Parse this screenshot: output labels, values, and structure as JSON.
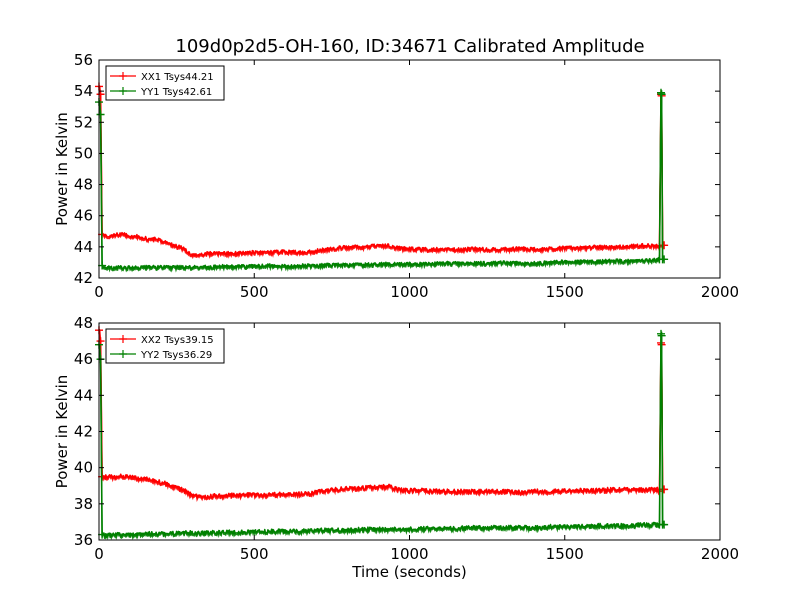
{
  "title": "109d0p2d5-OH-160, ID:34671 Calibrated Amplitude",
  "chart_data": [
    {
      "type": "line",
      "ylabel": "Power in Kelvin",
      "xlabel": "",
      "xlim": [
        0,
        2000
      ],
      "ylim": [
        42,
        56
      ],
      "xticks": [
        0,
        500,
        1000,
        1500,
        2000
      ],
      "yticks": [
        42,
        44,
        46,
        48,
        50,
        52,
        54,
        56
      ],
      "grid": false,
      "legend_position": "top-left",
      "series": [
        {
          "name": "XX1 Tsys44.21",
          "color": "#ff0000",
          "marker": "+",
          "x": [
            0,
            2,
            5,
            10,
            20,
            40,
            60,
            80,
            100,
            120,
            140,
            160,
            180,
            200,
            220,
            240,
            260,
            280,
            300,
            320,
            340,
            360,
            400,
            450,
            500,
            550,
            600,
            650,
            680,
            700,
            750,
            800,
            850,
            900,
            930,
            960,
            1000,
            1050,
            1100,
            1150,
            1200,
            1250,
            1300,
            1350,
            1400,
            1450,
            1500,
            1550,
            1600,
            1650,
            1700,
            1750,
            1790,
            1800,
            1805,
            1810,
            1812,
            1815,
            1820
          ],
          "y": [
            54.3,
            54.4,
            53.8,
            44.8,
            44.7,
            44.7,
            44.8,
            44.8,
            44.7,
            44.7,
            44.6,
            44.5,
            44.5,
            44.4,
            44.3,
            44.1,
            44.0,
            43.8,
            43.5,
            43.5,
            43.55,
            43.6,
            43.6,
            43.6,
            43.65,
            43.65,
            43.7,
            43.65,
            43.7,
            43.75,
            43.9,
            44.0,
            44.0,
            44.1,
            44.1,
            43.95,
            43.9,
            43.85,
            43.85,
            43.85,
            43.9,
            43.85,
            43.85,
            43.9,
            43.85,
            43.9,
            43.95,
            43.95,
            44.0,
            44.0,
            44.05,
            44.1,
            44.1,
            44.1,
            44.0,
            53.8,
            53.7,
            44.1,
            44.1
          ]
        },
        {
          "name": "YY1 Tsys42.61",
          "color": "#008000",
          "marker": "+",
          "x": [
            0,
            2,
            5,
            10,
            20,
            40,
            60,
            80,
            100,
            150,
            200,
            250,
            300,
            350,
            400,
            450,
            500,
            550,
            600,
            650,
            700,
            750,
            800,
            850,
            900,
            950,
            1000,
            1050,
            1100,
            1150,
            1200,
            1250,
            1300,
            1350,
            1400,
            1450,
            1500,
            1550,
            1600,
            1650,
            1700,
            1750,
            1790,
            1800,
            1805,
            1810,
            1812,
            1815,
            1820
          ],
          "y": [
            53.3,
            53.3,
            52.5,
            42.8,
            42.7,
            42.65,
            42.7,
            42.65,
            42.7,
            42.7,
            42.7,
            42.7,
            42.7,
            42.7,
            42.75,
            42.75,
            42.75,
            42.8,
            42.75,
            42.8,
            42.8,
            42.85,
            42.85,
            42.85,
            42.9,
            42.9,
            42.9,
            42.9,
            42.95,
            42.95,
            42.95,
            42.95,
            43.0,
            42.95,
            42.95,
            43.0,
            43.05,
            43.05,
            43.05,
            43.1,
            43.1,
            43.15,
            43.15,
            43.2,
            43.2,
            53.9,
            53.8,
            43.2,
            43.2
          ]
        }
      ]
    },
    {
      "type": "line",
      "ylabel": "Power in Kelvin",
      "xlabel": "Time (seconds)",
      "xlim": [
        0,
        2000
      ],
      "ylim": [
        36,
        48
      ],
      "xticks": [
        0,
        500,
        1000,
        1500,
        2000
      ],
      "yticks": [
        36,
        38,
        40,
        42,
        44,
        46,
        48
      ],
      "grid": false,
      "legend_position": "top-left",
      "series": [
        {
          "name": "XX2 Tsys39.15",
          "color": "#ff0000",
          "marker": "+",
          "x": [
            0,
            2,
            5,
            10,
            20,
            40,
            60,
            80,
            100,
            120,
            140,
            160,
            180,
            200,
            220,
            240,
            260,
            280,
            300,
            320,
            340,
            360,
            400,
            450,
            500,
            550,
            600,
            650,
            680,
            700,
            750,
            800,
            850,
            900,
            930,
            960,
            1000,
            1050,
            1100,
            1150,
            1200,
            1250,
            1300,
            1350,
            1400,
            1450,
            1500,
            1550,
            1600,
            1650,
            1700,
            1750,
            1790,
            1800,
            1805,
            1810,
            1812,
            1815,
            1820
          ],
          "y": [
            47.6,
            47.6,
            47.0,
            39.5,
            39.5,
            39.5,
            39.5,
            39.55,
            39.5,
            39.45,
            39.4,
            39.35,
            39.3,
            39.2,
            39.1,
            39.0,
            38.85,
            38.7,
            38.5,
            38.4,
            38.4,
            38.45,
            38.45,
            38.5,
            38.5,
            38.5,
            38.55,
            38.55,
            38.6,
            38.65,
            38.8,
            38.85,
            38.9,
            38.95,
            39.0,
            38.8,
            38.75,
            38.75,
            38.7,
            38.7,
            38.7,
            38.7,
            38.7,
            38.65,
            38.7,
            38.7,
            38.75,
            38.75,
            38.75,
            38.8,
            38.8,
            38.8,
            38.8,
            38.8,
            38.7,
            46.9,
            46.8,
            38.8,
            38.8
          ]
        },
        {
          "name": "YY2 Tsys36.29",
          "color": "#008000",
          "marker": "+",
          "x": [
            0,
            2,
            5,
            10,
            20,
            40,
            60,
            80,
            100,
            150,
            200,
            250,
            300,
            350,
            400,
            450,
            500,
            550,
            600,
            650,
            700,
            750,
            800,
            850,
            900,
            950,
            1000,
            1050,
            1100,
            1150,
            1200,
            1250,
            1300,
            1350,
            1400,
            1450,
            1500,
            1550,
            1600,
            1650,
            1700,
            1750,
            1790,
            1800,
            1805,
            1810,
            1812,
            1815,
            1820
          ],
          "y": [
            46.8,
            46.8,
            46.0,
            36.3,
            36.25,
            36.3,
            36.3,
            36.3,
            36.3,
            36.35,
            36.35,
            36.4,
            36.4,
            36.4,
            36.45,
            36.45,
            36.45,
            36.5,
            36.5,
            36.5,
            36.55,
            36.55,
            36.55,
            36.6,
            36.6,
            36.6,
            36.6,
            36.65,
            36.65,
            36.65,
            36.7,
            36.7,
            36.7,
            36.7,
            36.7,
            36.75,
            36.75,
            36.75,
            36.8,
            36.8,
            36.8,
            36.85,
            36.85,
            36.85,
            36.85,
            47.4,
            47.3,
            36.85,
            36.85
          ]
        }
      ]
    }
  ]
}
